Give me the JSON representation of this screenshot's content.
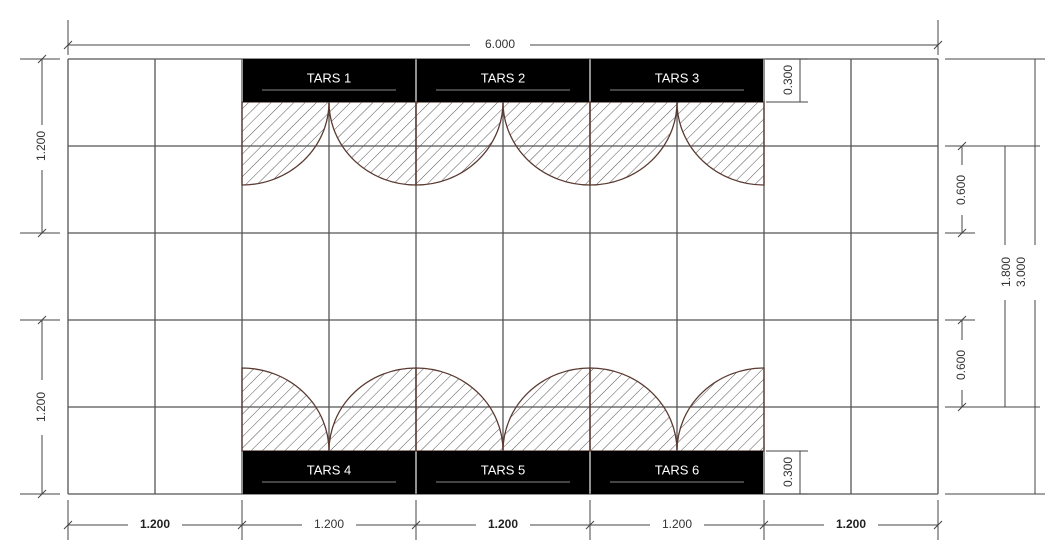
{
  "modules": [
    "TARS 1",
    "TARS 2",
    "TARS 3",
    "TARS 4",
    "TARS 5",
    "TARS 6"
  ],
  "dimensions": {
    "total_width": "6.000",
    "left_top": "1.200",
    "left_bottom": "1.200",
    "top_depth": "0.300",
    "bottom_depth": "0.300",
    "upper_gap": "0.600",
    "lower_gap": "0.600",
    "inner_height": "1.800",
    "total_height": "3.000",
    "bottom": [
      "1.200",
      "1.200",
      "1.200",
      "1.200",
      "1.200"
    ]
  }
}
